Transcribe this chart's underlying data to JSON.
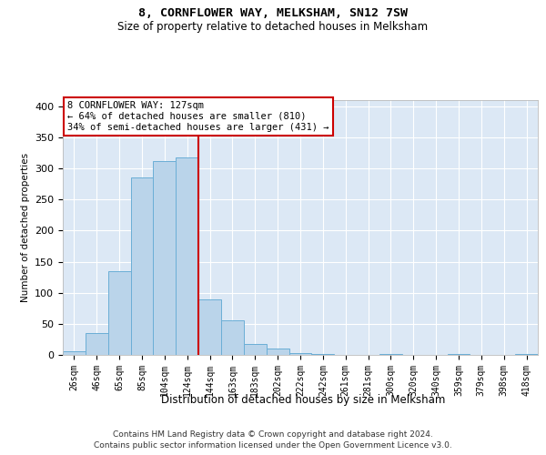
{
  "title": "8, CORNFLOWER WAY, MELKSHAM, SN12 7SW",
  "subtitle": "Size of property relative to detached houses in Melksham",
  "xlabel": "Distribution of detached houses by size in Melksham",
  "ylabel": "Number of detached properties",
  "bar_labels": [
    "26sqm",
    "46sqm",
    "65sqm",
    "85sqm",
    "104sqm",
    "124sqm",
    "144sqm",
    "163sqm",
    "183sqm",
    "202sqm",
    "222sqm",
    "242sqm",
    "261sqm",
    "281sqm",
    "300sqm",
    "320sqm",
    "340sqm",
    "359sqm",
    "379sqm",
    "398sqm",
    "418sqm"
  ],
  "bar_values": [
    6,
    35,
    135,
    285,
    312,
    318,
    90,
    55,
    17,
    10,
    3,
    1,
    0,
    0,
    2,
    0,
    0,
    2,
    0,
    0,
    2
  ],
  "bar_color": "#bad4ea",
  "bar_edge_color": "#6baed6",
  "vline_x_index": 5.5,
  "vline_color": "#cc0000",
  "annotation_text": "8 CORNFLOWER WAY: 127sqm\n← 64% of detached houses are smaller (810)\n34% of semi-detached houses are larger (431) →",
  "annotation_box_facecolor": "#ffffff",
  "annotation_box_edgecolor": "#cc0000",
  "ylim": [
    0,
    410
  ],
  "yticks": [
    0,
    50,
    100,
    150,
    200,
    250,
    300,
    350,
    400
  ],
  "footer1": "Contains HM Land Registry data © Crown copyright and database right 2024.",
  "footer2": "Contains public sector information licensed under the Open Government Licence v3.0.",
  "bg_color": "#dce8f5"
}
